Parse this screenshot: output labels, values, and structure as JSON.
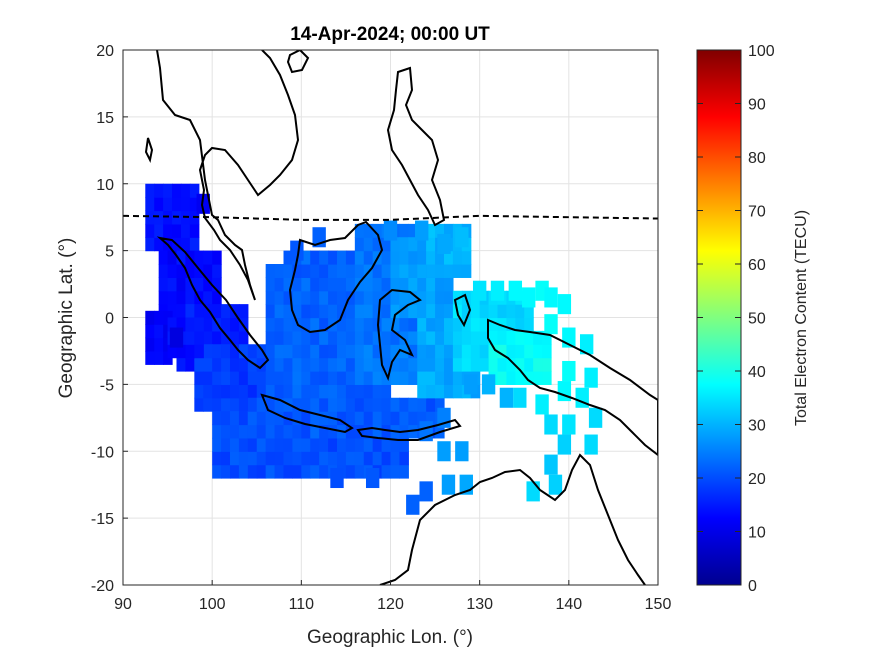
{
  "chart_data": {
    "type": "heatmap",
    "title": "14-Apr-2024; 00:00 UT",
    "xlabel": "Geographic Lon. (°)",
    "ylabel": "Geographic Lat. (°)",
    "xlim": [
      90,
      150
    ],
    "ylim": [
      -20,
      20
    ],
    "xticks": [
      90,
      100,
      110,
      120,
      130,
      140,
      150
    ],
    "yticks": [
      20,
      15,
      10,
      5,
      0,
      -5,
      -10,
      -15,
      -20
    ],
    "grid": true,
    "colorbar": {
      "label": "Total Electron Content (TECU)",
      "range": [
        0,
        100
      ],
      "ticks": [
        100,
        90,
        80,
        70,
        60,
        50,
        40,
        30,
        20,
        10,
        0
      ],
      "colormap": "jet",
      "placement": "right"
    },
    "magnetic_equator": [
      [
        90,
        7.6
      ],
      [
        100,
        7.5
      ],
      [
        110,
        7.3
      ],
      [
        120,
        7.3
      ],
      [
        130,
        7.6
      ],
      [
        140,
        7.5
      ],
      [
        150,
        7.4
      ]
    ],
    "tec_regions": [
      {
        "lon": [
          92.5,
          98
        ],
        "lat": [
          5,
          9.5
        ],
        "tec": 14
      },
      {
        "lon": [
          94,
          101
        ],
        "lat": [
          0,
          5
        ],
        "tec": 13
      },
      {
        "lon": [
          96,
          104
        ],
        "lat": [
          -4,
          1
        ],
        "tec": 15
      },
      {
        "lon": [
          98,
          108
        ],
        "lat": [
          -7,
          -2
        ],
        "tec": 18
      },
      {
        "lon": [
          100,
          122
        ],
        "lat": [
          -12,
          -7
        ],
        "tec": 20
      },
      {
        "lon": [
          104,
          126
        ],
        "lat": [
          -9,
          -6
        ],
        "tec": 21
      },
      {
        "lon": [
          106,
          120
        ],
        "lat": [
          -6,
          4
        ],
        "tec": 22
      },
      {
        "lon": [
          108,
          118
        ],
        "lat": [
          0,
          5
        ],
        "tec": 22
      },
      {
        "lon": [
          116,
          124
        ],
        "lat": [
          -5,
          7
        ],
        "tec": 24
      },
      {
        "lon": [
          120,
          127
        ],
        "lat": [
          0,
          6
        ],
        "tec": 28
      },
      {
        "lon": [
          123,
          130
        ],
        "lat": [
          -6,
          1
        ],
        "tec": 29
      },
      {
        "lon": [
          124,
          129
        ],
        "lat": [
          3,
          7
        ],
        "tec": 30
      },
      {
        "lon": [
          127,
          136
        ],
        "lat": [
          -4,
          2
        ],
        "tec": 34
      },
      {
        "lon": [
          131,
          138
        ],
        "lat": [
          -5,
          -1
        ],
        "tec": 38
      },
      {
        "lon": [
          92.5,
          95
        ],
        "lat": [
          -3.5,
          0
        ],
        "tec": 12
      },
      {
        "lon": [
          95,
          99
        ],
        "lat": [
          -3,
          0
        ],
        "tec": 14
      }
    ],
    "tec_cells": [
      {
        "lon": 99,
        "lat": 8.5,
        "tec": 11
      },
      {
        "lon": 96,
        "lat": -1.5,
        "tec": 9
      },
      {
        "lon": 114,
        "lat": -12,
        "tec": 20
      },
      {
        "lon": 118,
        "lat": -12,
        "tec": 21
      },
      {
        "lon": 122.5,
        "lat": -14,
        "tec": 22
      },
      {
        "lon": 124,
        "lat": -13,
        "tec": 22
      },
      {
        "lon": 126,
        "lat": -10,
        "tec": 28
      },
      {
        "lon": 128,
        "lat": -10,
        "tec": 28
      },
      {
        "lon": 126.5,
        "lat": -12.5,
        "tec": 28
      },
      {
        "lon": 128.5,
        "lat": -12.5,
        "tec": 29
      },
      {
        "lon": 120,
        "lat": 6.5,
        "tec": 26
      },
      {
        "lon": 123.5,
        "lat": 6.5,
        "tec": 28
      },
      {
        "lon": 126,
        "lat": 5.5,
        "tec": 29
      },
      {
        "lon": 112,
        "lat": 6,
        "tec": 22
      },
      {
        "lon": 109.5,
        "lat": 5,
        "tec": 21
      },
      {
        "lon": 128,
        "lat": 6,
        "tec": 31
      },
      {
        "lon": 130,
        "lat": 2,
        "tec": 35
      },
      {
        "lon": 132,
        "lat": 2,
        "tec": 36
      },
      {
        "lon": 134,
        "lat": 2,
        "tec": 37
      },
      {
        "lon": 135.5,
        "lat": 1.5,
        "tec": 37
      },
      {
        "lon": 137,
        "lat": 2,
        "tec": 38
      },
      {
        "lon": 138,
        "lat": 1.5,
        "tec": 37
      },
      {
        "lon": 139.5,
        "lat": 1,
        "tec": 37
      },
      {
        "lon": 138,
        "lat": -0.5,
        "tec": 38
      },
      {
        "lon": 140,
        "lat": -1.5,
        "tec": 37
      },
      {
        "lon": 142,
        "lat": -2,
        "tec": 36
      },
      {
        "lon": 140,
        "lat": -4,
        "tec": 38
      },
      {
        "lon": 142.5,
        "lat": -4.5,
        "tec": 36
      },
      {
        "lon": 139.5,
        "lat": -5.5,
        "tec": 37
      },
      {
        "lon": 141.5,
        "lat": -6,
        "tec": 36
      },
      {
        "lon": 137,
        "lat": -6.5,
        "tec": 36
      },
      {
        "lon": 138,
        "lat": -8,
        "tec": 34
      },
      {
        "lon": 140,
        "lat": -8,
        "tec": 35
      },
      {
        "lon": 143,
        "lat": -7.5,
        "tec": 34
      },
      {
        "lon": 139.5,
        "lat": -9.5,
        "tec": 33
      },
      {
        "lon": 142.5,
        "lat": -9.5,
        "tec": 34
      },
      {
        "lon": 138,
        "lat": -11,
        "tec": 32
      },
      {
        "lon": 138.5,
        "lat": -12.5,
        "tec": 33
      },
      {
        "lon": 136,
        "lat": -13,
        "tec": 34
      },
      {
        "lon": 134.5,
        "lat": -6,
        "tec": 34
      },
      {
        "lon": 131,
        "lat": -5,
        "tec": 30
      },
      {
        "lon": 133,
        "lat": -6,
        "tec": 30
      },
      {
        "lon": 129,
        "lat": -5,
        "tec": 28
      },
      {
        "lon": 126,
        "lat": -7.5,
        "tec": 25
      },
      {
        "lon": 124,
        "lat": -8.5,
        "tec": 24
      }
    ]
  }
}
